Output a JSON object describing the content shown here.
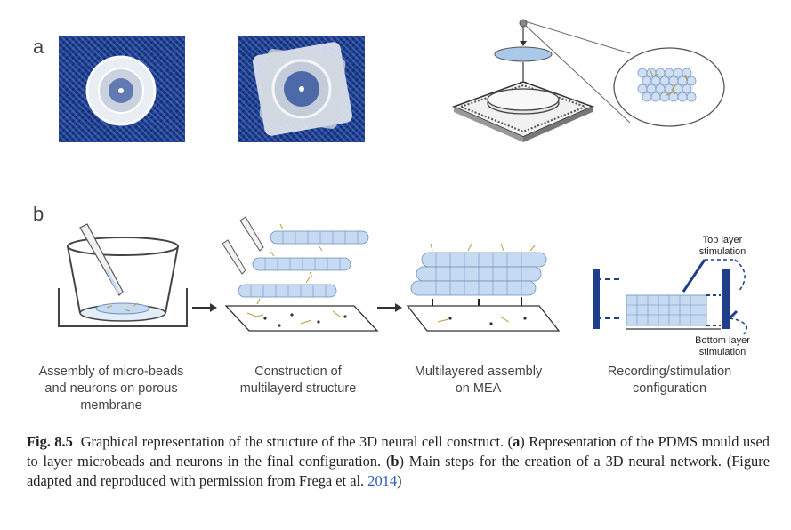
{
  "panels": {
    "a_label": "a",
    "b_label": "b"
  },
  "steps": [
    {
      "line1": "Assembly of micro-beads",
      "line2": "and neurons on porous",
      "line3": "membrane"
    },
    {
      "line1": "Construction of",
      "line2": "multilayerd structure",
      "line3": ""
    },
    {
      "line1": "Multilayered assembly",
      "line2": "on MEA",
      "line3": ""
    },
    {
      "line1": "Recording/stimulation",
      "line2": "configuration",
      "line3": ""
    }
  ],
  "annotations": {
    "top_layer_1": "Top layer",
    "top_layer_2": "stimulation",
    "bottom_layer_1": "Bottom layer",
    "bottom_layer_2": "stimulation"
  },
  "caption": {
    "fig_label": "Fig. 8.5",
    "text1": "Graphical representation of the structure of the 3D neural cell construct. (",
    "a": "a",
    "text2": ") Representation of the PDMS mould used to layer microbeads and neurons in the final configuration. (",
    "b": "b",
    "text3": ") Main steps for the creation of a 3D neural network. (Figure adapted and reproduced with permission from Frega et al. ",
    "cite": "2014",
    "text4": ")"
  },
  "colors": {
    "fabric": "#1d3f93",
    "bead": "#c6dbf2",
    "bead_stroke": "#6d8fbf",
    "neuron": "#b89a3a",
    "electrode": "#1f3f8a",
    "cite": "#2b5cb8"
  }
}
